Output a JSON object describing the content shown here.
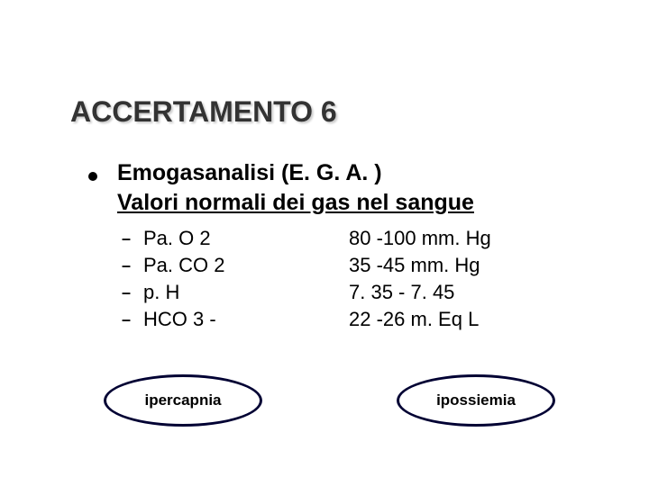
{
  "title": "ACCERTAMENTO 6",
  "intro": {
    "line1": "Emogasanalisi (E. G. A. )",
    "line2": "Valori normali dei gas nel sangue"
  },
  "rows": [
    {
      "param": "Pa. O 2",
      "range": "80 -100 mm. Hg"
    },
    {
      "param": "Pa. CO 2",
      "range": " 35 -45 mm. Hg"
    },
    {
      "param": "p. H",
      "range": " 7. 35 - 7. 45"
    },
    {
      "param": "HCO 3 -",
      "range": "22 -26 m. Eq L"
    }
  ],
  "ovals": {
    "left": "ipercapnia",
    "right": "ipossiemia"
  },
  "colors": {
    "background": "#ffffff",
    "title_color": "#333333",
    "text_color": "#000000",
    "oval_border": "#000033"
  },
  "typography": {
    "title_fontsize": 32,
    "intro_fontsize": 25,
    "row_fontsize": 22,
    "oval_fontsize": 17
  }
}
